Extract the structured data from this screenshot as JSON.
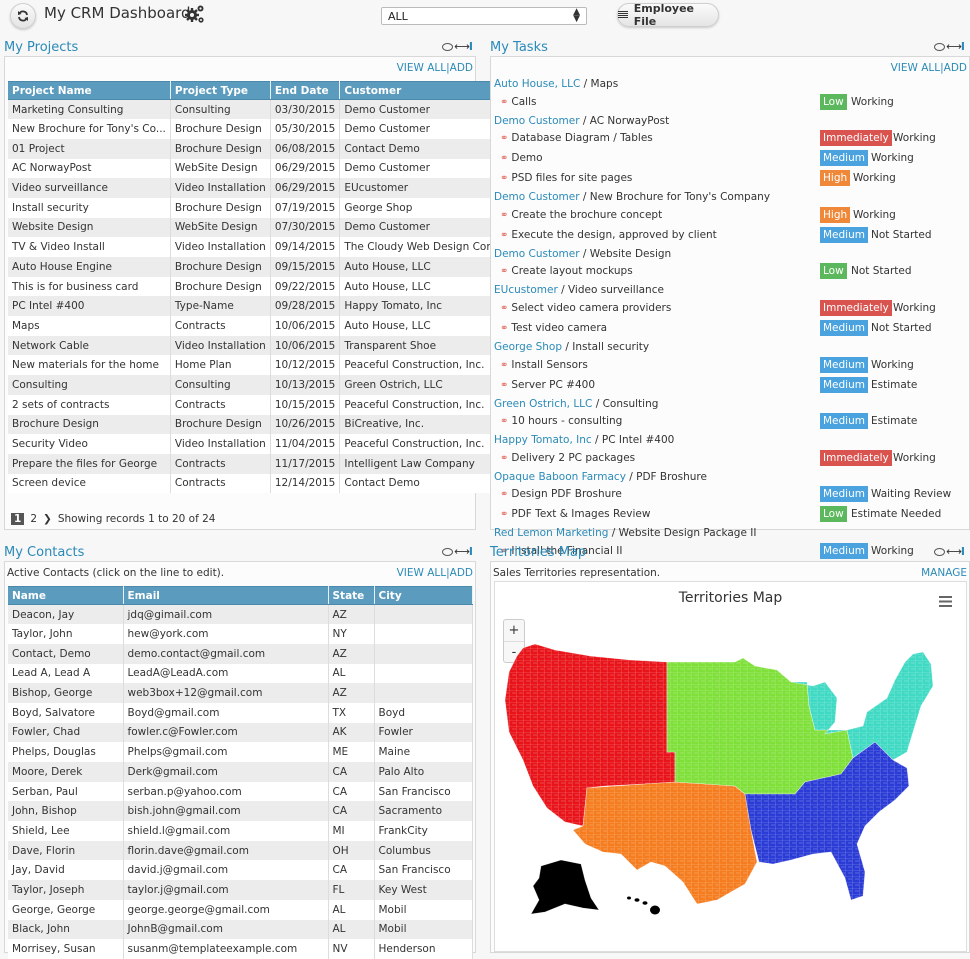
{
  "header": {
    "title": "My CRM Dashboard",
    "filter_value": "ALL",
    "employee_file_label": "Employee File"
  },
  "projects": {
    "title": "My Projects",
    "view_all": "VIEW ALL",
    "add": "ADD",
    "columns": [
      "Project Name",
      "Project Type",
      "End Date",
      "Customer"
    ],
    "rows": [
      [
        "Marketing Consulting",
        "Consulting",
        "03/30/2015",
        "Demo Customer"
      ],
      [
        "New Brochure for Tony's Co...",
        "Brochure Design",
        "05/30/2015",
        "Demo Customer"
      ],
      [
        "01 Project",
        "Brochure Design",
        "06/08/2015",
        "Contact Demo"
      ],
      [
        "AC NorwayPost",
        "WebSite Design",
        "06/29/2015",
        "Demo Customer"
      ],
      [
        "Video surveillance",
        "Video Installation",
        "06/29/2015",
        "EUcustomer"
      ],
      [
        "Install security",
        "Brochure Design",
        "07/19/2015",
        "George Shop"
      ],
      [
        "Website Design",
        "WebSite Design",
        "07/30/2015",
        "Demo Customer"
      ],
      [
        "TV & Video Install",
        "Video Installation",
        "09/14/2015",
        "The Cloudy Web Design Com..."
      ],
      [
        "Auto House Engine",
        "Brochure Design",
        "09/15/2015",
        "Auto House, LLC"
      ],
      [
        "This is for business card",
        "Brochure Design",
        "09/22/2015",
        "Auto House, LLC"
      ],
      [
        "PC Intel #400",
        "Type-Name",
        "09/28/2015",
        "Happy Tomato, Inc"
      ],
      [
        "Maps",
        "Contracts",
        "10/06/2015",
        "Auto House, LLC"
      ],
      [
        "Network Cable",
        "Video Installation",
        "10/06/2015",
        "Transparent Shoe"
      ],
      [
        "New materials for the home",
        "Home Plan",
        "10/12/2015",
        "Peaceful Construction, Inc."
      ],
      [
        "Consulting",
        "Consulting",
        "10/13/2015",
        "Green Ostrich, LLC"
      ],
      [
        "2 sets of contracts",
        "Contracts",
        "10/15/2015",
        "Peaceful Construction, Inc."
      ],
      [
        "Brochure Design",
        "Brochure Design",
        "10/26/2015",
        "BiCreative, Inc."
      ],
      [
        "Security Video",
        "Video Installation",
        "11/04/2015",
        "Peaceful Construction, Inc."
      ],
      [
        "Prepare the files for George",
        "Contracts",
        "11/17/2015",
        "Intelligent Law Company"
      ],
      [
        "Screen device",
        "Contracts",
        "12/14/2015",
        "Contact Demo"
      ]
    ],
    "pager": {
      "current": "1",
      "next_page": "2",
      "summary": "Showing records 1 to 20 of 24"
    }
  },
  "tasks": {
    "title": "My Tasks",
    "view_all": "VIEW ALL",
    "add": "ADD",
    "groups": [
      {
        "customer": "Auto House, LLC",
        "project": "Maps",
        "items": [
          {
            "name": "Calls",
            "priority": "Low",
            "status": "Working"
          }
        ]
      },
      {
        "customer": "Demo Customer",
        "project": "AC NorwayPost",
        "items": [
          {
            "name": "Database Diagram / Tables",
            "priority": "Immediately",
            "status": "Working"
          },
          {
            "name": "Demo",
            "priority": "Medium",
            "status": "Working"
          },
          {
            "name": "PSD files for site pages",
            "priority": "High",
            "status": "Working"
          }
        ]
      },
      {
        "customer": "Demo Customer",
        "project": "New Brochure for Tony's Company",
        "items": [
          {
            "name": "Create the brochure concept",
            "priority": "High",
            "status": "Working"
          },
          {
            "name": "Execute the design, approved by client",
            "priority": "Medium",
            "status": "Not Started"
          }
        ]
      },
      {
        "customer": "Demo Customer",
        "project": "Website Design",
        "items": [
          {
            "name": "Create layout mockups",
            "priority": "Low",
            "status": "Not Started"
          }
        ]
      },
      {
        "customer": "EUcustomer",
        "project": "Video surveillance",
        "items": [
          {
            "name": "Select video camera providers",
            "priority": "Immediately",
            "status": "Working"
          },
          {
            "name": "Test video camera",
            "priority": "Medium",
            "status": "Not Started"
          }
        ]
      },
      {
        "customer": "George Shop",
        "project": "Install security",
        "items": [
          {
            "name": "Install Sensors",
            "priority": "Medium",
            "status": "Working"
          },
          {
            "name": "Server PC #400",
            "priority": "Medium",
            "status": "Estimate"
          }
        ]
      },
      {
        "customer": "Green Ostrich, LLC",
        "project": "Consulting",
        "items": [
          {
            "name": "10 hours - consulting",
            "priority": "Medium",
            "status": "Estimate"
          }
        ]
      },
      {
        "customer": "Happy Tomato, Inc",
        "project": "PC Intel #400",
        "items": [
          {
            "name": "Delivery 2 PC packages",
            "priority": "Immediately",
            "status": "Working"
          }
        ]
      },
      {
        "customer": "Opaque Baboon Farmacy",
        "project": "PDF Broshure",
        "items": [
          {
            "name": "Design PDF Broshure",
            "priority": "Medium",
            "status": "Waiting Review"
          },
          {
            "name": "PDF Text & Images Review",
            "priority": "Low",
            "status": "Estimate Needed"
          }
        ]
      },
      {
        "customer": "Red Lemon Marketing",
        "project": "Website Design Package II",
        "items": [
          {
            "name": "Install the Financial II",
            "priority": "Medium",
            "status": "Working"
          }
        ]
      }
    ],
    "priority_colors": {
      "Low": "#5cb85c",
      "Immediately": "#d9534f",
      "Medium": "#4aa3df",
      "High": "#f0883a"
    }
  },
  "contacts": {
    "title": "My Contacts",
    "description": "Active Contacts (click on the line to edit).",
    "view_all": "VIEW ALL",
    "add": "ADD",
    "columns": [
      "Name",
      "Email",
      "State",
      "City"
    ],
    "rows": [
      [
        "Deacon, Jay",
        "jdq@gimail.com",
        "AZ",
        ""
      ],
      [
        "Taylor, John",
        "hew@york.com",
        "NY",
        ""
      ],
      [
        "Contact, Demo",
        "demo.contact@gmail.com",
        "AZ",
        ""
      ],
      [
        "Lead A, Lead A",
        "LeadA@LeadA.com",
        "AL",
        ""
      ],
      [
        "Bishop, George",
        "web3box+12@gmail.com",
        "AZ",
        ""
      ],
      [
        "Boyd, Salvatore",
        "Boyd@gmail.com",
        "TX",
        "Boyd"
      ],
      [
        "Fowler, Chad",
        "fowler.c@Fowler.com",
        "AK",
        "Fowler"
      ],
      [
        "Phelps, Douglas",
        "Phelps@gmail.com",
        "ME",
        "Maine"
      ],
      [
        "Moore, Derek",
        "Derk@gmail.com",
        "CA",
        "Palo Alto"
      ],
      [
        "Serban, Paul",
        "serban.p@yahoo.com",
        "CA",
        "San Francisco"
      ],
      [
        "John, Bishop",
        "bish.john@gmail.com",
        "CA",
        "Sacramento"
      ],
      [
        "Shield, Lee",
        "shield.l@gmail.com",
        "MI",
        "FrankCity"
      ],
      [
        "Dave, Florin",
        "florin.dave@gmail.com",
        "OH",
        "Columbus"
      ],
      [
        "Jay, David",
        "david.j@gmail.com",
        "CA",
        "San Francisco"
      ],
      [
        "Taylor, Joseph",
        "taylor.j@gmail.com",
        "FL",
        "Key West"
      ],
      [
        "George, George",
        "george.george@gmail.com",
        "AL",
        "Mobil"
      ],
      [
        "Black, John",
        "JohnB@gmail.com",
        "AL",
        "Mobil"
      ],
      [
        "Morrisey, Susan",
        "susanm@templateexample.com",
        "NV",
        "Henderson"
      ]
    ]
  },
  "territories": {
    "title": "Territories Map",
    "description": "Sales Territories representation.",
    "manage": "MANAGE",
    "map_title": "Territories Map",
    "zoom_in": "+",
    "zoom_out": "-",
    "regions": [
      {
        "name": "West",
        "color": "#e8141a"
      },
      {
        "name": "Southwest",
        "color": "#f57c1f"
      },
      {
        "name": "Midwest",
        "color": "#7fe03a"
      },
      {
        "name": "Northeast",
        "color": "#3fd9c4"
      },
      {
        "name": "Southeast",
        "color": "#2b3bd6"
      },
      {
        "name": "Alaska & Hawaii",
        "color": "#000000"
      }
    ]
  }
}
